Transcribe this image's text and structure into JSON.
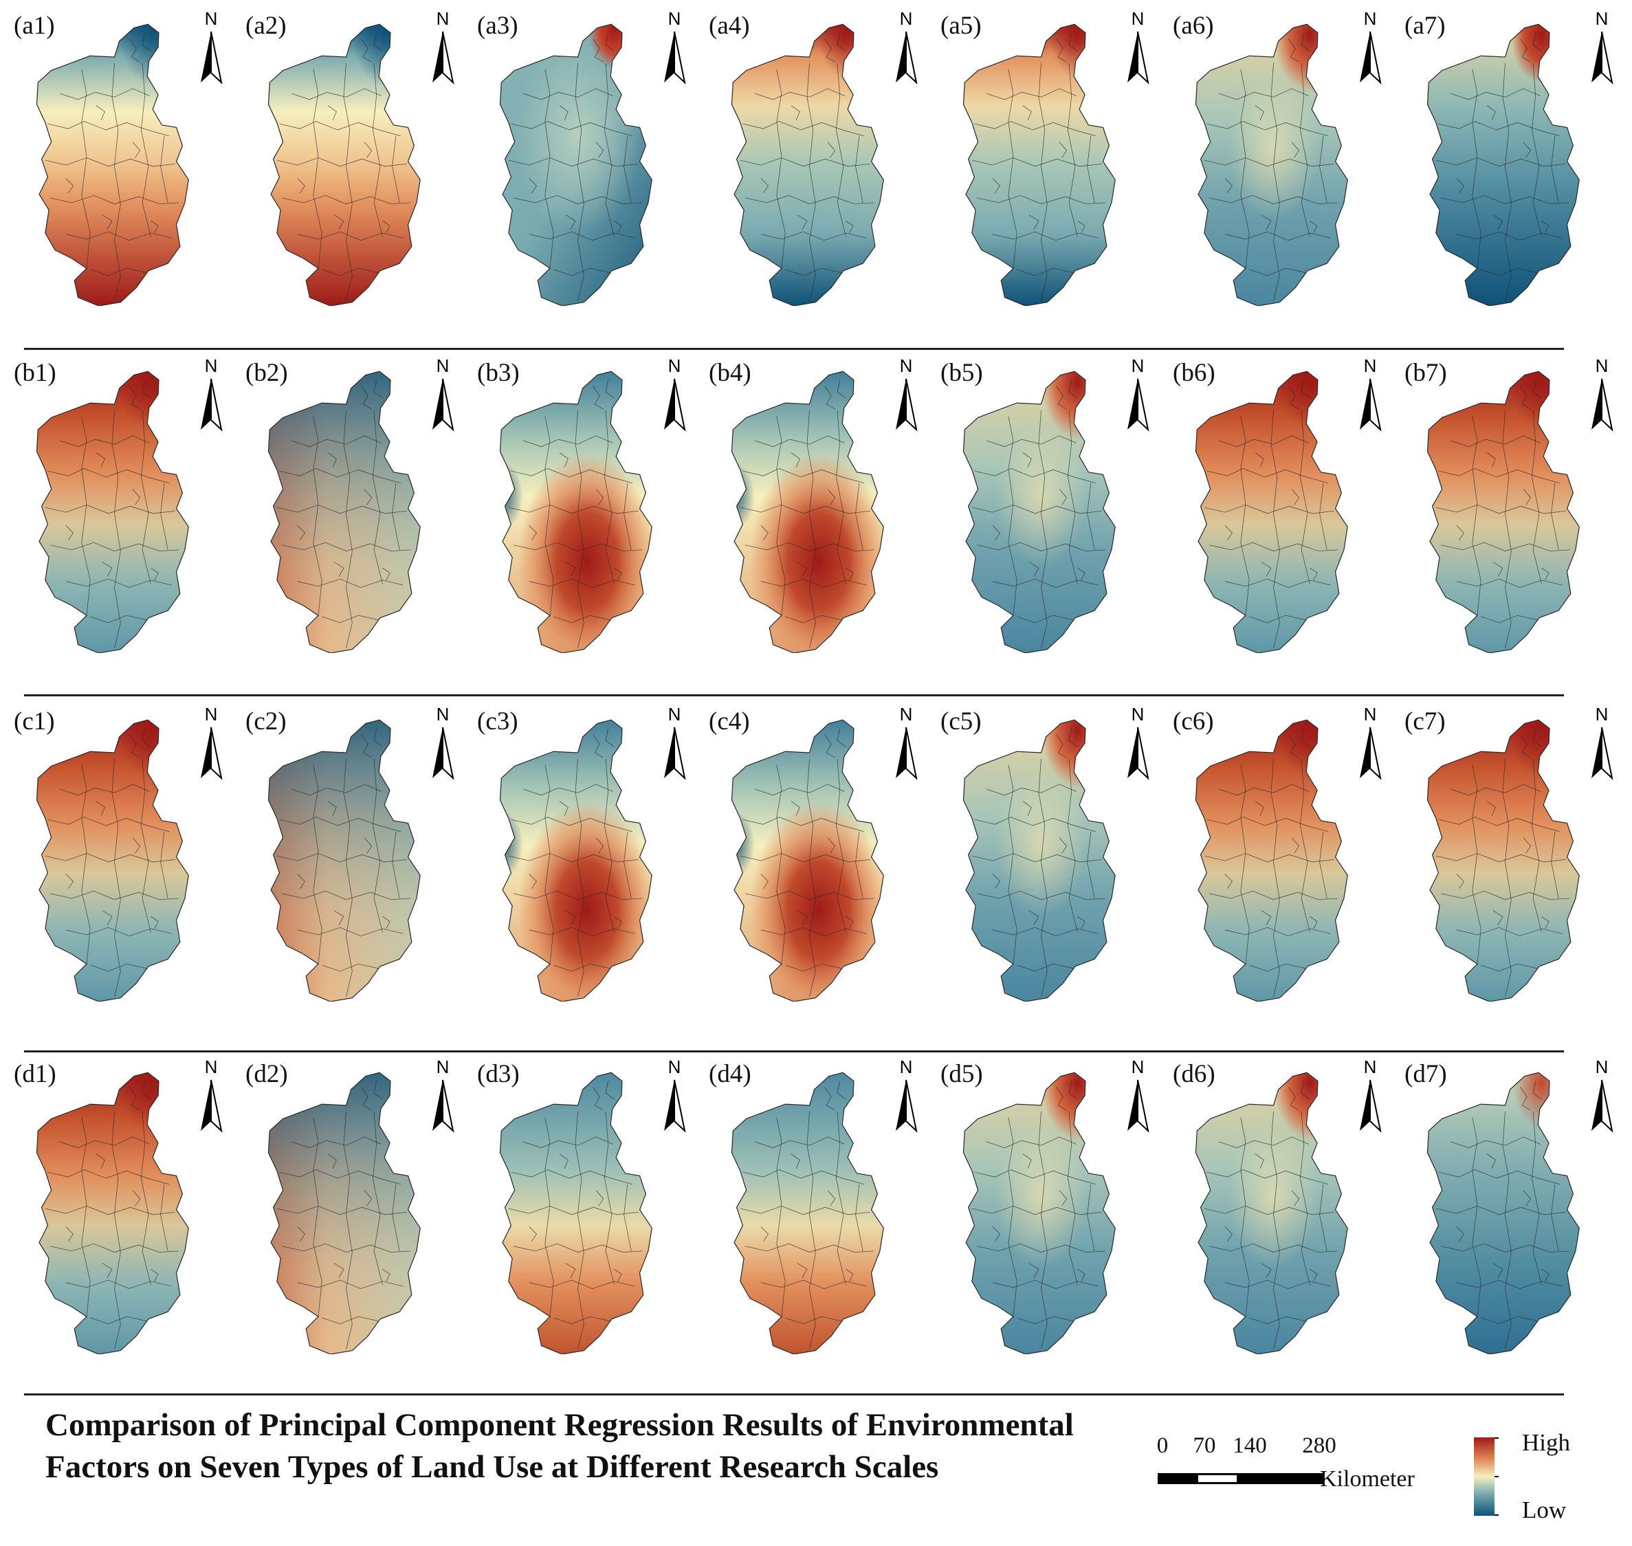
{
  "figure": {
    "title": "Comparison of Principal Component Regression Results of Environmental Factors on Seven Types of Land Use at Different Research Scales",
    "north_label": "N",
    "colors": {
      "high": "#9e1a18",
      "mid": "#f6efbe",
      "low": "#0f5178",
      "boundary": "#2b2b2b",
      "rule": "#222222"
    },
    "rows": [
      {
        "id": "a",
        "panels": [
          {
            "label": "(a1)",
            "field": "north-low-south-high"
          },
          {
            "label": "(a2)",
            "field": "north-low-south-high"
          },
          {
            "label": "(a3)",
            "field": "northeast-high-else-low"
          },
          {
            "label": "(a4)",
            "field": "north-high-south-low"
          },
          {
            "label": "(a5)",
            "field": "north-high-south-low"
          },
          {
            "label": "(a6)",
            "field": "northeast-high-mixed"
          },
          {
            "label": "(a7)",
            "field": "northeast-high-south-low"
          }
        ]
      },
      {
        "id": "b",
        "panels": [
          {
            "label": "(b1)",
            "field": "north-high-mixed"
          },
          {
            "label": "(b2)",
            "field": "north-low-mixed"
          },
          {
            "label": "(b3)",
            "field": "south-central-high"
          },
          {
            "label": "(b4)",
            "field": "south-central-high"
          },
          {
            "label": "(b5)",
            "field": "northeast-high-mixed"
          },
          {
            "label": "(b6)",
            "field": "north-high-mixed"
          },
          {
            "label": "(b7)",
            "field": "north-high-mixed"
          }
        ]
      },
      {
        "id": "c",
        "panels": [
          {
            "label": "(c1)",
            "field": "north-high-mixed"
          },
          {
            "label": "(c2)",
            "field": "north-low-mixed"
          },
          {
            "label": "(c3)",
            "field": "south-central-high"
          },
          {
            "label": "(c4)",
            "field": "south-central-high"
          },
          {
            "label": "(c5)",
            "field": "northeast-high-mixed"
          },
          {
            "label": "(c6)",
            "field": "north-high-mixed"
          },
          {
            "label": "(c7)",
            "field": "north-high-mixed"
          }
        ]
      },
      {
        "id": "d",
        "panels": [
          {
            "label": "(d1)",
            "field": "north-high-mixed"
          },
          {
            "label": "(d2)",
            "field": "north-low-mixed"
          },
          {
            "label": "(d3)",
            "field": "south-high-north-low"
          },
          {
            "label": "(d4)",
            "field": "south-high-north-low"
          },
          {
            "label": "(d5)",
            "field": "northeast-high-mixed"
          },
          {
            "label": "(d6)",
            "field": "northeast-high-mixed"
          },
          {
            "label": "(d7)",
            "field": "northeast-high-low"
          }
        ]
      }
    ],
    "scale_bar": {
      "ticks": [
        "0",
        "70",
        "140",
        "280"
      ],
      "tick_values": [
        0,
        70,
        140,
        280
      ],
      "unit": "Kilometer"
    },
    "legend": {
      "high": "High",
      "low": "Low"
    }
  }
}
